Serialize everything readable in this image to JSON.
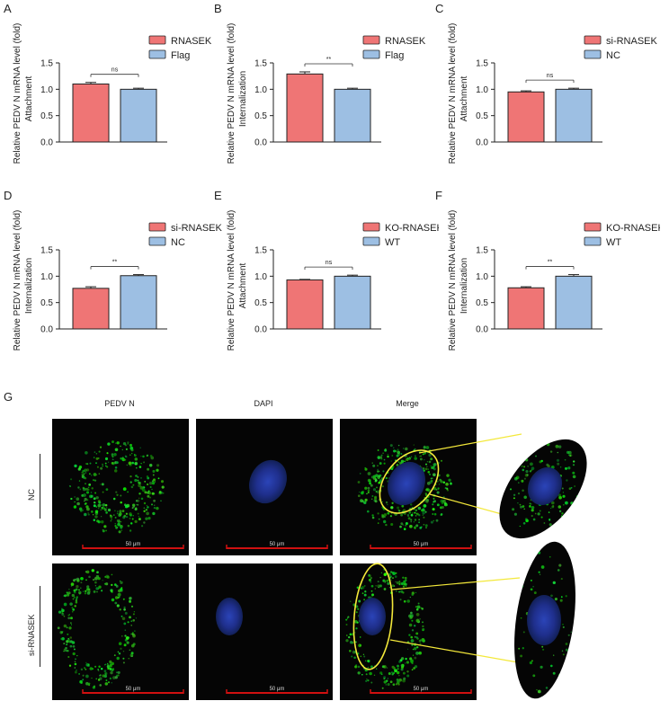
{
  "chart_data": [
    {
      "id": "A",
      "type": "bar",
      "ylabel": "Relative PEDV N mRNA level (fold)",
      "sublabel": "Attachment",
      "categories": [
        "RNASEK",
        "Flag"
      ],
      "values": [
        1.1,
        1.0
      ],
      "errors": [
        0.03,
        0.02
      ],
      "ylim": [
        0,
        1.5
      ],
      "yticks": [
        "0.0",
        "0.5",
        "1.0",
        "1.5"
      ],
      "significance": "ns",
      "legend": [
        "RNASEK",
        "Flag"
      ]
    },
    {
      "id": "B",
      "type": "bar",
      "ylabel": "Relative PEDV N mRNA level (fold)",
      "sublabel": "Internalization",
      "categories": [
        "RNASEK",
        "Flag"
      ],
      "values": [
        1.29,
        1.0
      ],
      "errors": [
        0.04,
        0.02
      ],
      "ylim": [
        0,
        1.5
      ],
      "yticks": [
        "0.0",
        "0.5",
        "1.0",
        "1.5"
      ],
      "significance": "**",
      "legend": [
        "RNASEK",
        "Flag"
      ]
    },
    {
      "id": "C",
      "type": "bar",
      "ylabel": "Relative PEDV N mRNA level (fold)",
      "sublabel": "Attachment",
      "categories": [
        "si-RNASEK",
        "NC"
      ],
      "values": [
        0.95,
        1.0
      ],
      "errors": [
        0.02,
        0.02
      ],
      "ylim": [
        0,
        1.5
      ],
      "yticks": [
        "0.0",
        "0.5",
        "1.0",
        "1.5"
      ],
      "significance": "ns",
      "legend": [
        "si-RNASEK",
        "NC"
      ]
    },
    {
      "id": "D",
      "type": "bar",
      "ylabel": "Relative PEDV N mRNA level (fold)",
      "sublabel": "Internalization",
      "categories": [
        "si-RNASEK",
        "NC"
      ],
      "values": [
        0.77,
        1.01
      ],
      "errors": [
        0.03,
        0.02
      ],
      "ylim": [
        0,
        1.5
      ],
      "yticks": [
        "0.0",
        "0.5",
        "1.0",
        "1.5"
      ],
      "significance": "**",
      "legend": [
        "si-RNASEK",
        "NC"
      ]
    },
    {
      "id": "E",
      "type": "bar",
      "ylabel": "Relative PEDV N mRNA level (fold)",
      "sublabel": "Attachment",
      "categories": [
        "KO-RNASEK",
        "WT"
      ],
      "values": [
        0.93,
        1.0
      ],
      "errors": [
        0.01,
        0.02
      ],
      "ylim": [
        0,
        1.5
      ],
      "yticks": [
        "0.0",
        "0.5",
        "1.0",
        "1.5"
      ],
      "significance": "ns",
      "legend": [
        "KO-RNASEK",
        "WT"
      ]
    },
    {
      "id": "F",
      "type": "bar",
      "ylabel": "Relative PEDV N mRNA level (fold)",
      "sublabel": "Internalization",
      "categories": [
        "KO-RNASEK",
        "WT"
      ],
      "values": [
        0.78,
        1.0
      ],
      "errors": [
        0.02,
        0.03
      ],
      "ylim": [
        0,
        1.5
      ],
      "yticks": [
        "0.0",
        "0.5",
        "1.0",
        "1.5"
      ],
      "significance": "**",
      "legend": [
        "KO-RNASEK",
        "WT"
      ]
    }
  ],
  "colors": {
    "treatment": "#ef7575",
    "control": "#9dbfe3"
  },
  "panel_g": {
    "letter": "G",
    "columns": [
      "PEDV N",
      "DAPI",
      "Merge"
    ],
    "rows": [
      "NC",
      "si-RNASEK"
    ],
    "scale_bar": "50 μm"
  }
}
